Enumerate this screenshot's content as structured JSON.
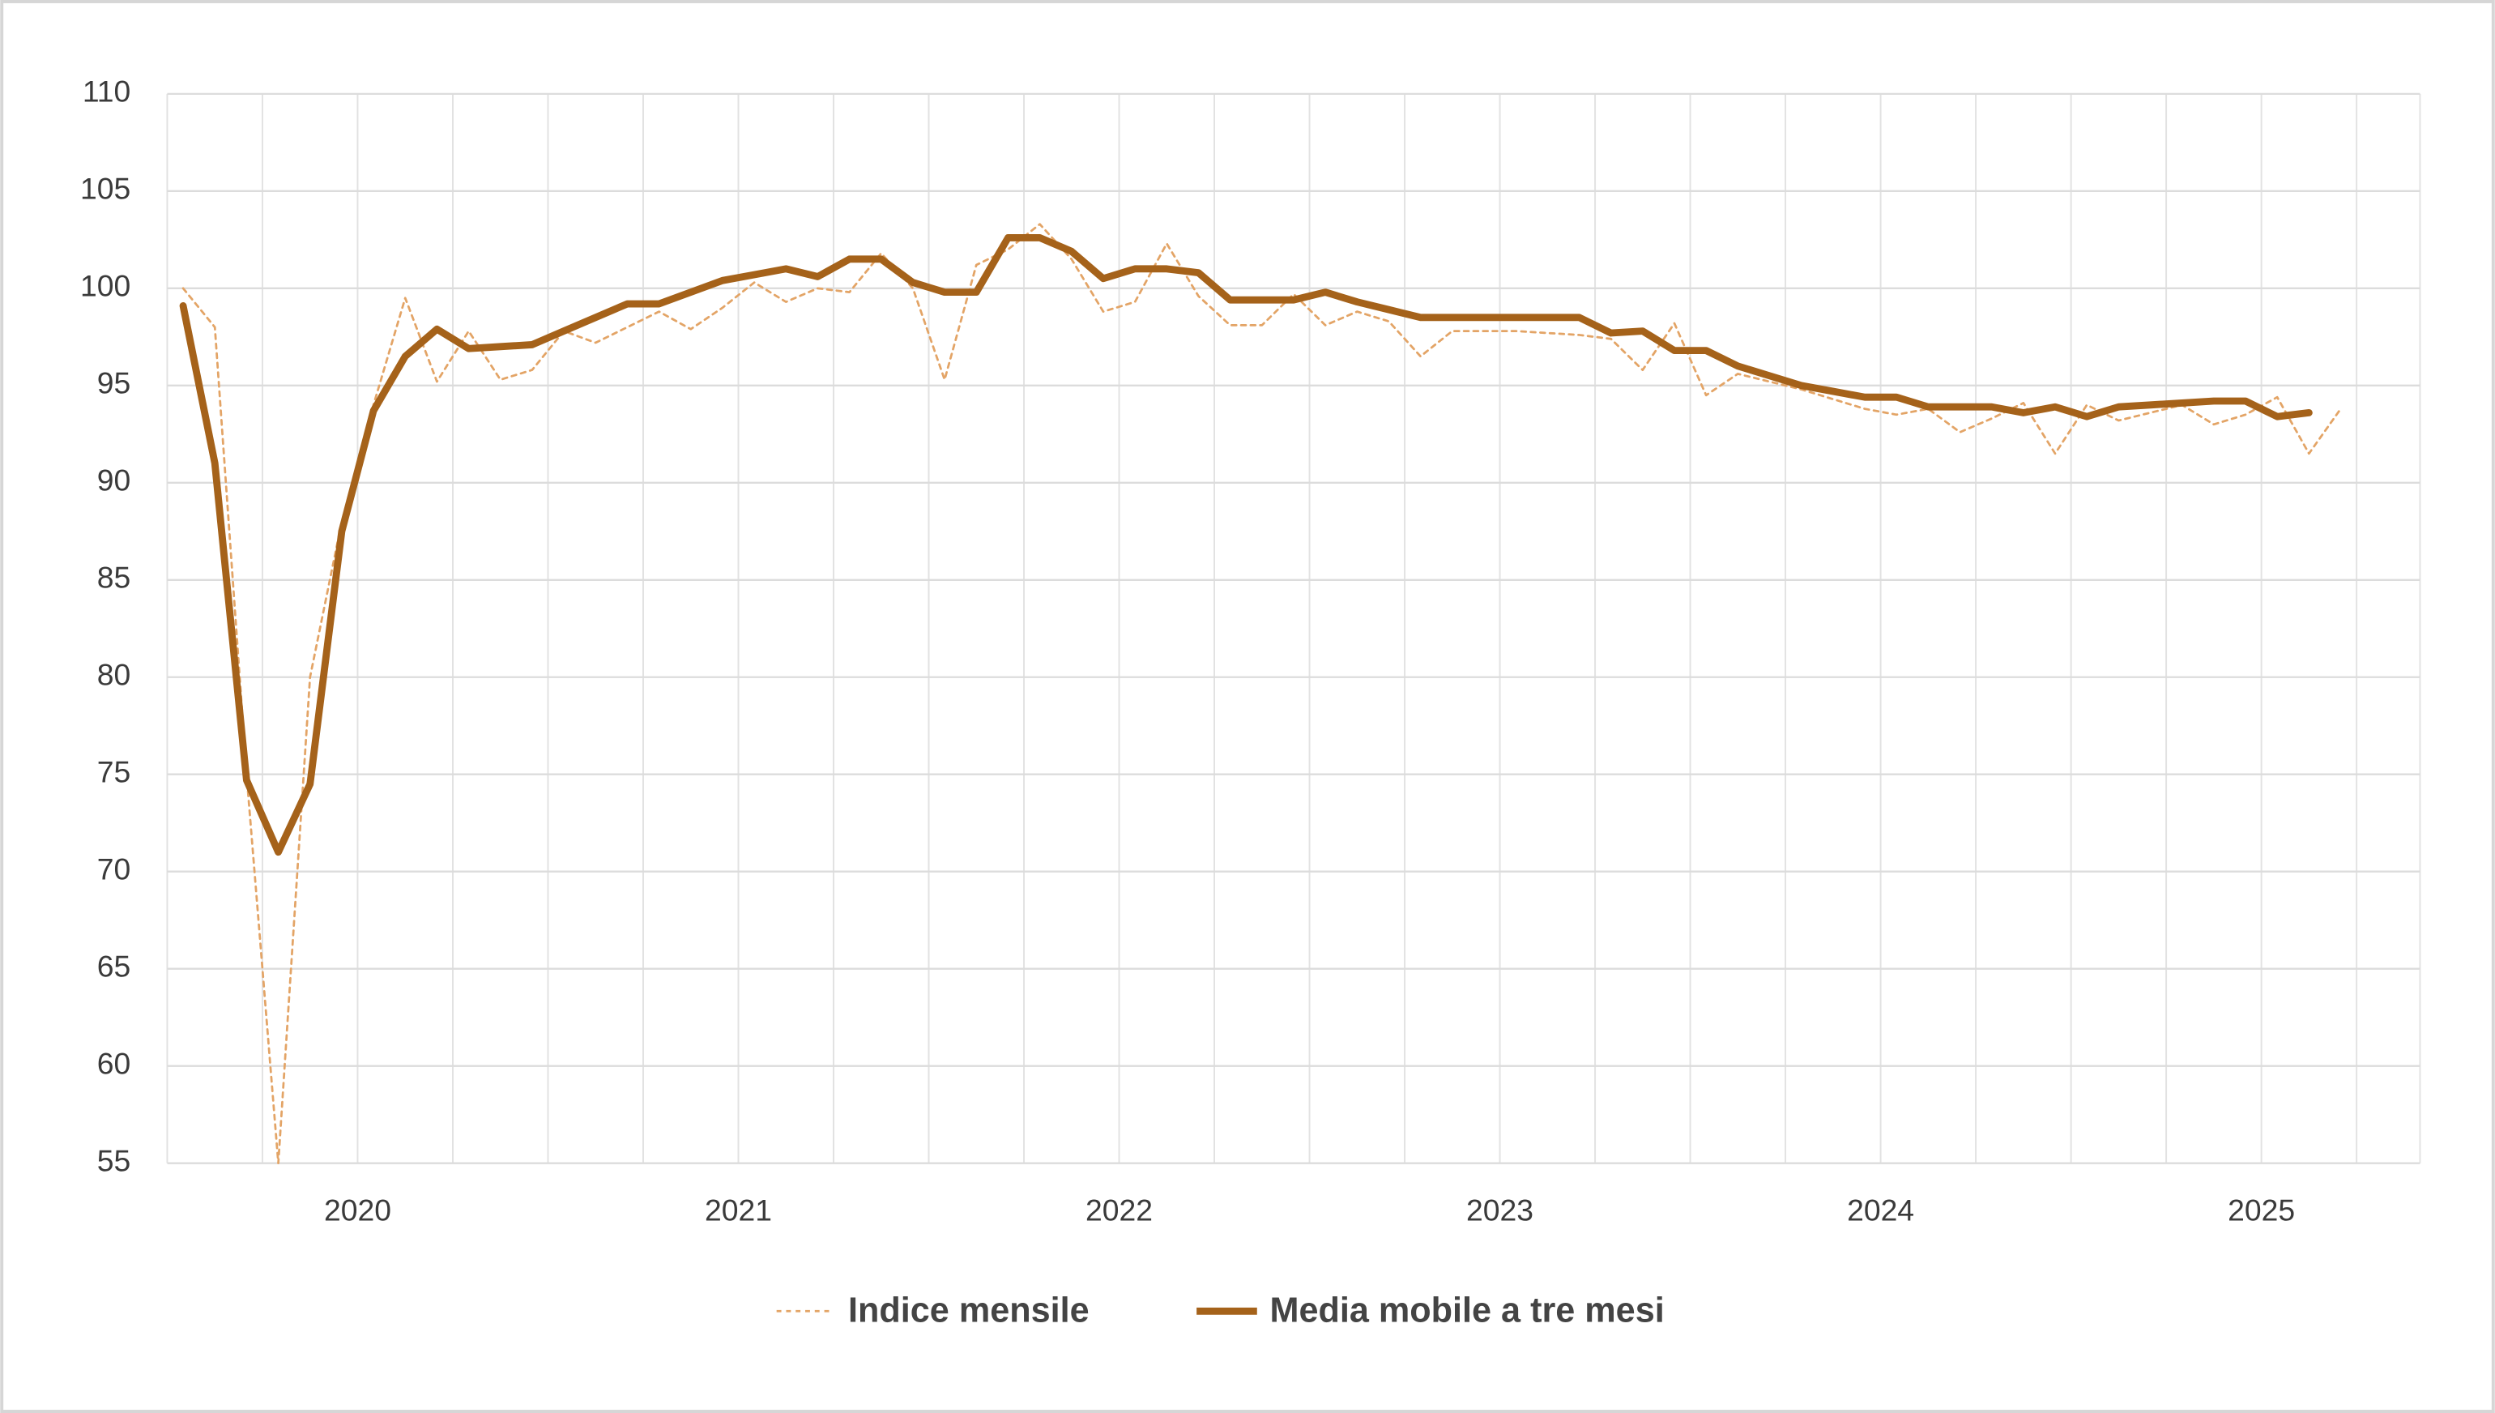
{
  "chart_data": {
    "type": "line",
    "year_labels": [
      "2020",
      "2021",
      "2022",
      "2023",
      "2024",
      "2025"
    ],
    "series": [
      {
        "name": "Indice mensile",
        "color": "#e3a466",
        "style": "dashed",
        "values": [
          100,
          98,
          75,
          55,
          80,
          88,
          94,
          99.5,
          95.2,
          97.8,
          95.3,
          95.8,
          97.8,
          97.2,
          98,
          98.8,
          97.9,
          99,
          100.3,
          99.3,
          100,
          99.8,
          101.8,
          100,
          95.3,
          101.2,
          102,
          103.3,
          101.5,
          98.8,
          99.3,
          102.3,
          99.6,
          98.1,
          98.1,
          99.7,
          98.1,
          98.8,
          98.3,
          96.5,
          97.8,
          97.8,
          97.8,
          97.7,
          97.6,
          97.4,
          95.8,
          98.2,
          94.5,
          95.6,
          95.2,
          94.8,
          94.3,
          93.8,
          93.5,
          93.8,
          92.6,
          93.3,
          94.1,
          91.5,
          94,
          93.2,
          93.6,
          94,
          93,
          93.5,
          94.4,
          91.5,
          93.8
        ]
      },
      {
        "name": "Media mobile a tre mesi",
        "color": "#a5621a",
        "style": "solid",
        "values": [
          99.1,
          91,
          74.7,
          71,
          74.5,
          87.5,
          93.7,
          96.5,
          97.9,
          96.9,
          97,
          97.1,
          97.8,
          98.5,
          99.2,
          99.2,
          99.8,
          100.4,
          100.7,
          101,
          100.6,
          101.5,
          101.5,
          100.3,
          99.8,
          99.8,
          102.6,
          102.6,
          101.9,
          100.5,
          101,
          101,
          100.8,
          99.4,
          99.4,
          99.4,
          99.8,
          99.3,
          98.9,
          98.5,
          98.5,
          98.5,
          98.5,
          98.5,
          98.5,
          97.7,
          97.8,
          96.8,
          96.8,
          96,
          95.5,
          95,
          94.7,
          94.4,
          94.4,
          93.9,
          93.9,
          93.9,
          93.6,
          93.9,
          93.4,
          93.9,
          94,
          94.1,
          94.2,
          94.2,
          93.4,
          93.6,
          null
        ]
      }
    ],
    "ylim": [
      55,
      110
    ],
    "yticks": [
      55,
      60,
      65,
      70,
      75,
      80,
      85,
      90,
      95,
      100,
      105,
      110
    ],
    "grid": true,
    "legend": "bottom"
  }
}
